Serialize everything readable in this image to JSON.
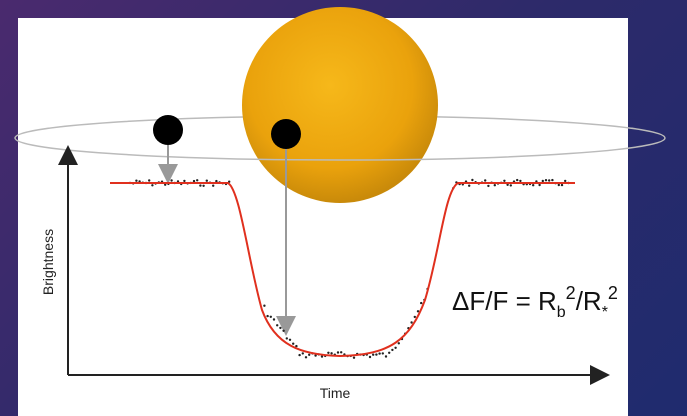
{
  "axes": {
    "y_label": "Brightness",
    "x_label": "Time"
  },
  "equation": {
    "lhs": "ΔF/F = R",
    "sub1": "b",
    "sup1": "2",
    "mid": "/R",
    "sub2": "*",
    "sup2": "2"
  }
}
